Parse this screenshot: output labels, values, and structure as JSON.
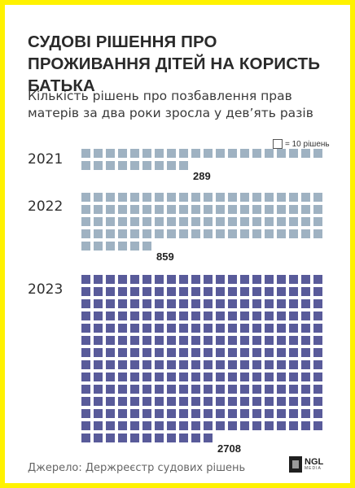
{
  "title": "СУДОВІ РІШЕННЯ ПРО ПРОЖИВАННЯ ДІТЕЙ НА КОРИСТЬ БАТЬКА",
  "subtitle": "Кількість рішень про позбавлення прав матерів за два роки зросла у дев’ять разів",
  "legend": {
    "label": "= 10 рішень",
    "unit_value": 10
  },
  "source": "Джерело: Держреєстр судових рішень",
  "logo": {
    "main": "NGL",
    "sub": "MEDIA"
  },
  "colors": {
    "frame": "#fff200",
    "light": "#9fb2c2",
    "dark": "#595b9a"
  },
  "chart_data": {
    "type": "waffle",
    "title": "СУДОВІ РІШЕННЯ ПРО ПРОЖИВАННЯ ДІТЕЙ НА КОРИСТЬ БАТЬКА",
    "unit": 10,
    "categories": [
      "2021",
      "2022",
      "2023"
    ],
    "values": [
      289,
      859,
      2708
    ],
    "value_labels": [
      "289",
      "859",
      "2708"
    ],
    "colors": [
      "#9fb2c2",
      "#9fb2c2",
      "#595b9a"
    ]
  }
}
